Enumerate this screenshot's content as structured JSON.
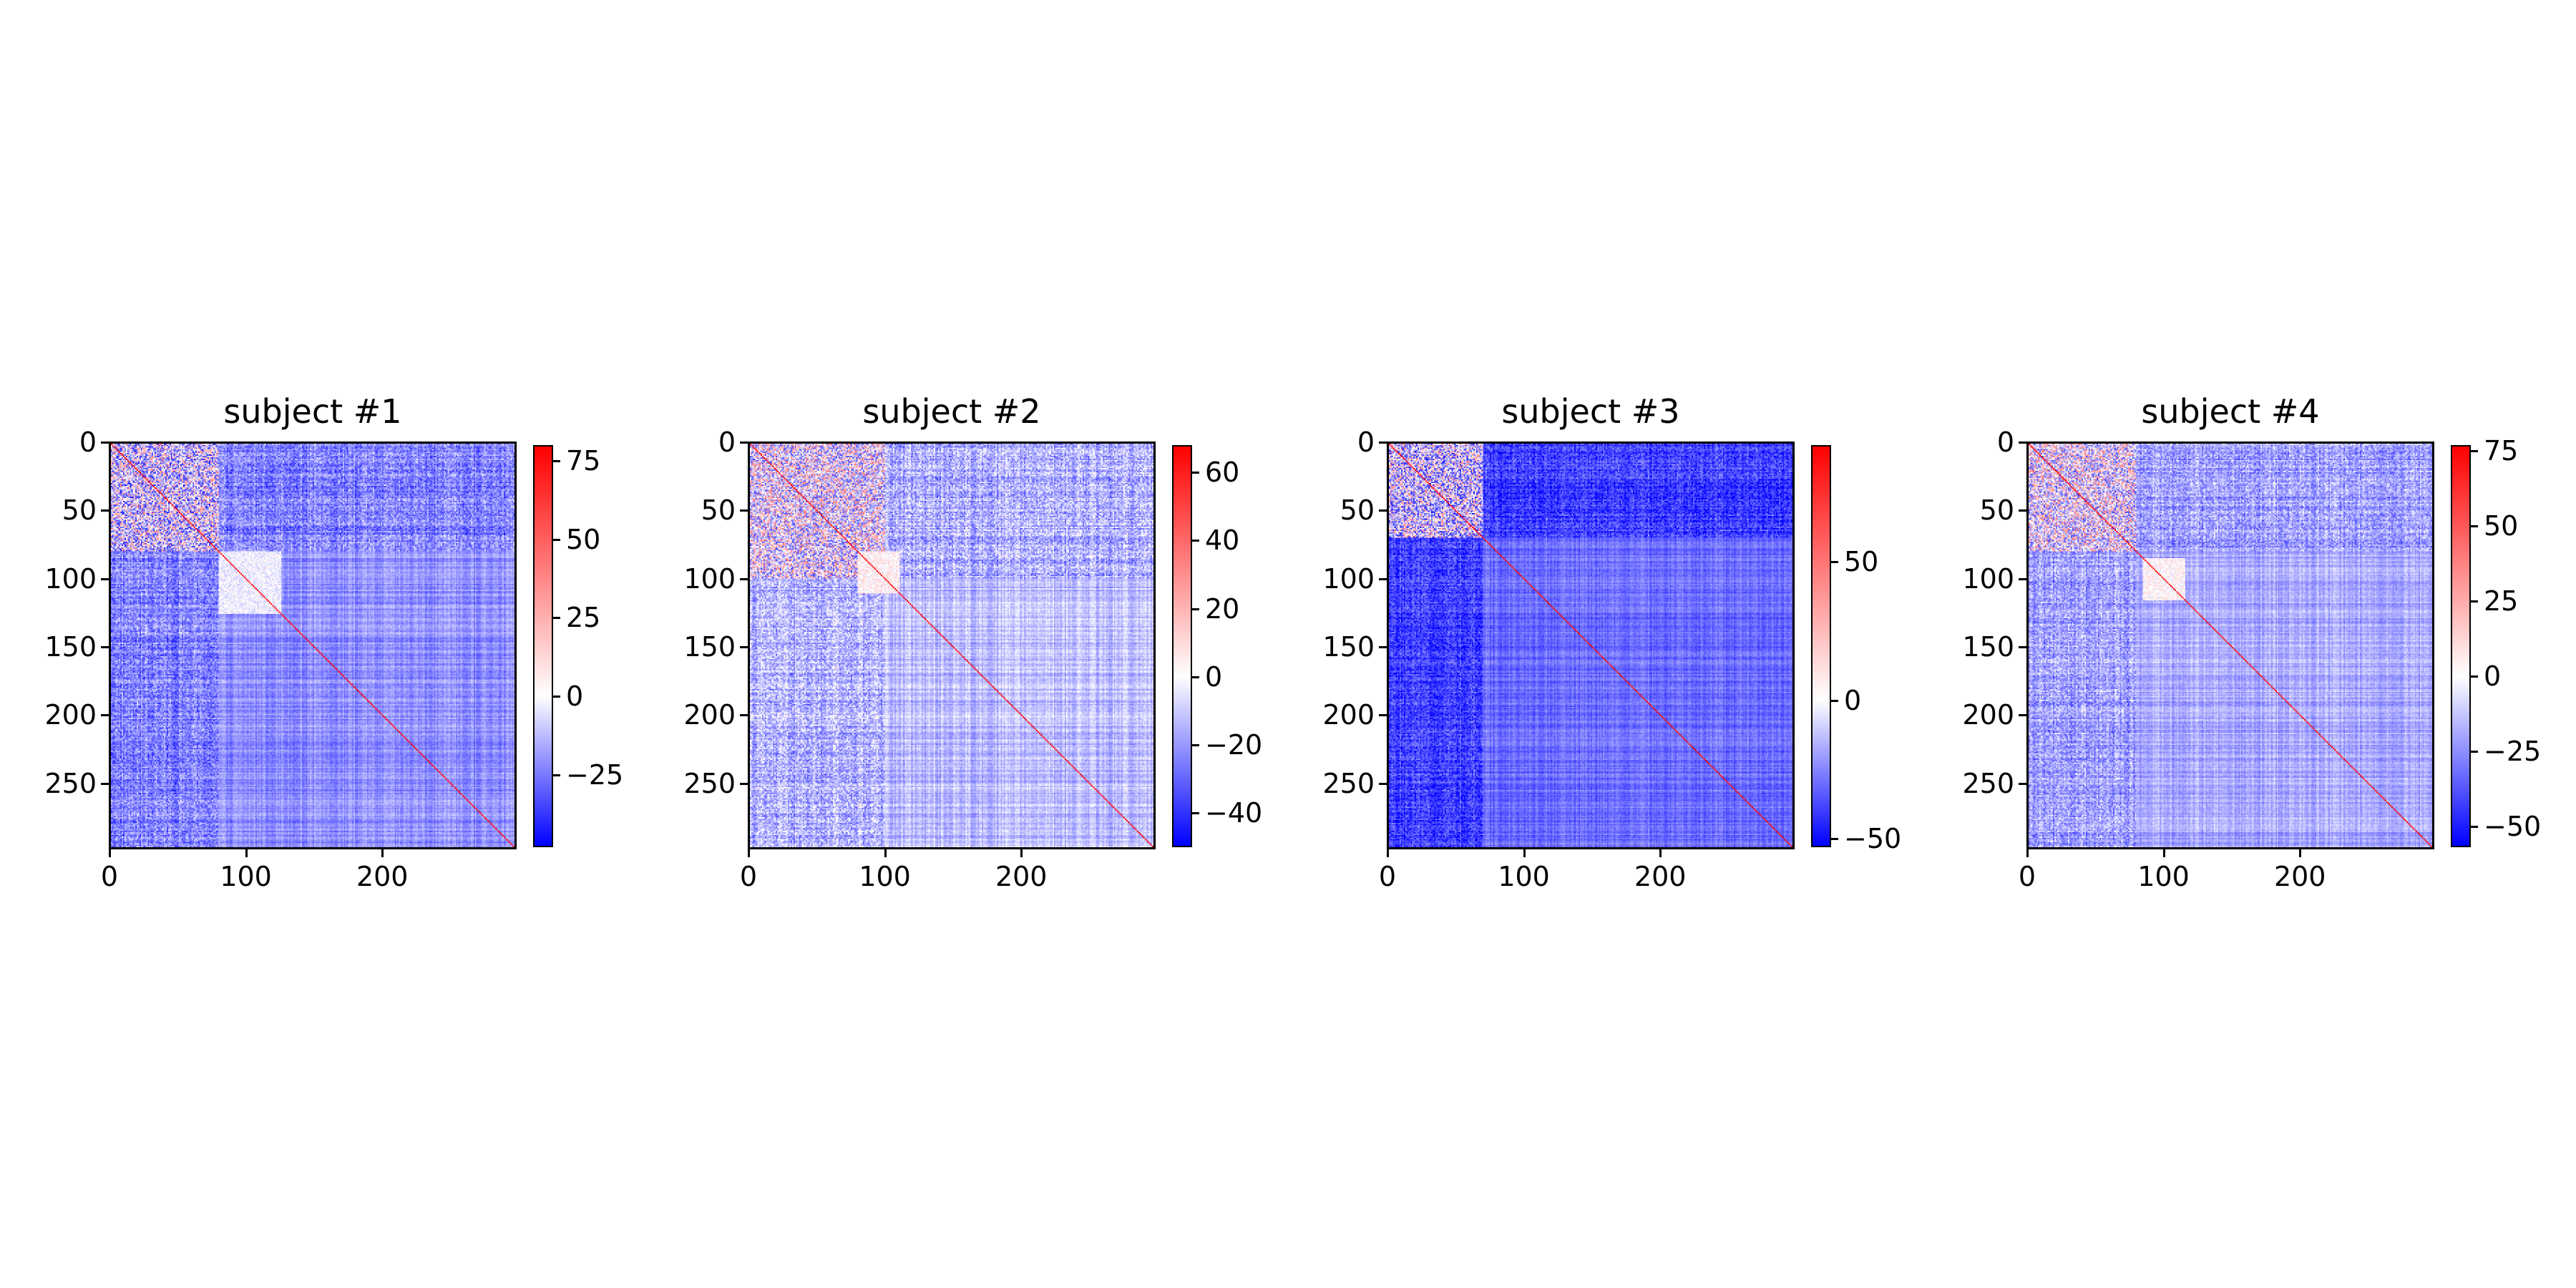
{
  "chart_data": [
    {
      "type": "heatmap",
      "title": "subject #1",
      "rows": 298,
      "cols": 298,
      "x_ticks": [
        0,
        100,
        200
      ],
      "y_ticks": [
        0,
        50,
        100,
        150,
        200,
        250
      ],
      "colormap": "bwr",
      "colorbar": {
        "min": -48,
        "max": 80,
        "ticks": [
          -25,
          0,
          25,
          50,
          75
        ]
      },
      "structure": {
        "hot_block_end": 80,
        "warm_region": [
          80,
          125
        ]
      }
    },
    {
      "type": "heatmap",
      "title": "subject #2",
      "rows": 298,
      "cols": 298,
      "x_ticks": [
        0,
        100,
        200
      ],
      "y_ticks": [
        0,
        50,
        100,
        150,
        200,
        250
      ],
      "colormap": "bwr",
      "colorbar": {
        "min": -50,
        "max": 68,
        "ticks": [
          -40,
          -20,
          0,
          20,
          40,
          60
        ]
      },
      "structure": {
        "hot_block_end": 100,
        "warm_region": [
          80,
          110
        ]
      }
    },
    {
      "type": "heatmap",
      "title": "subject #3",
      "rows": 298,
      "cols": 298,
      "x_ticks": [
        0,
        100,
        200
      ],
      "y_ticks": [
        0,
        50,
        100,
        150,
        200,
        250
      ],
      "colormap": "bwr",
      "colorbar": {
        "min": -53,
        "max": 92,
        "ticks": [
          -50,
          0,
          50
        ]
      },
      "structure": {
        "hot_block_end": 70,
        "warm_region": []
      }
    },
    {
      "type": "heatmap",
      "title": "subject #4",
      "rows": 298,
      "cols": 298,
      "x_ticks": [
        0,
        100,
        200
      ],
      "y_ticks": [
        0,
        50,
        100,
        150,
        200,
        250
      ],
      "colormap": "bwr",
      "colorbar": {
        "min": -57,
        "max": 77,
        "ticks": [
          -50,
          -25,
          0,
          25,
          50,
          75
        ]
      },
      "structure": {
        "hot_block_end": 80,
        "warm_region": [
          85,
          115
        ]
      }
    }
  ],
  "colors": {
    "low": "#0000ff",
    "mid": "#ffffff",
    "high": "#ff0000"
  }
}
